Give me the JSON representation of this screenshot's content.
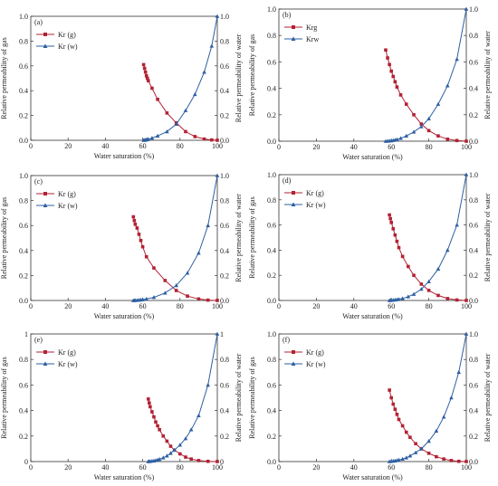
{
  "chart_data": [
    {
      "type": "line",
      "panel": "(a)",
      "xlabel": "Water saturation (%)",
      "ylabel_left": "Relative permeability of gas",
      "ylabel_right": "Relative permeability of water",
      "xlim": [
        0,
        100
      ],
      "ylim_left": [
        0,
        1
      ],
      "ylim_right": [
        0,
        1
      ],
      "x_ticks": [
        "0",
        "20",
        "40",
        "60",
        "80",
        "100"
      ],
      "y_ticks_left": [
        "0.0",
        "0.2",
        "0.4",
        "0.6",
        "0.8",
        "1.0"
      ],
      "y_ticks_right": [
        "0.0",
        "0.2",
        "0.4",
        "0.6",
        "0.8",
        "1.0"
      ],
      "legend_position": "top-left",
      "series": [
        {
          "name": "Kr (g)",
          "marker": "square",
          "color": "#b22234",
          "axis": "left",
          "x": [
            60.5,
            61,
            61.5,
            62,
            62.5,
            63,
            65,
            68,
            73,
            78,
            83,
            88,
            93,
            97,
            100
          ],
          "y": [
            0.61,
            0.58,
            0.55,
            0.52,
            0.5,
            0.48,
            0.42,
            0.33,
            0.22,
            0.14,
            0.07,
            0.03,
            0.01,
            0.003,
            0
          ]
        },
        {
          "name": "Kr (w)",
          "marker": "triangle",
          "color": "#2e5fa3",
          "axis": "right",
          "x": [
            60.5,
            61,
            61.5,
            62,
            62.5,
            63,
            65,
            68,
            73,
            78,
            83,
            88,
            93,
            97,
            100
          ],
          "y": [
            0,
            0.001,
            0.002,
            0.004,
            0.006,
            0.009,
            0.018,
            0.035,
            0.07,
            0.13,
            0.24,
            0.37,
            0.55,
            0.76,
            1.0
          ]
        }
      ]
    },
    {
      "type": "line",
      "panel": "(b)",
      "xlabel": "Water saturation (%)",
      "ylabel_left": "Relative permeability of gas",
      "ylabel_right": "Relative permeability of water",
      "xlim": [
        0,
        100
      ],
      "ylim_left": [
        0,
        1
      ],
      "ylim_right": [
        0,
        1
      ],
      "x_ticks": [
        "0",
        "20",
        "40",
        "60",
        "80",
        "100"
      ],
      "y_ticks_left": [
        "0.0",
        "0.2",
        "0.4",
        "0.6",
        "0.8",
        "1.0"
      ],
      "y_ticks_right": [
        "0.0",
        "0.2",
        "0.4",
        "0.6",
        "0.8",
        "1.0"
      ],
      "legend_position": "top-left",
      "series": [
        {
          "name": "Krg",
          "marker": "square",
          "color": "#b22234",
          "axis": "left",
          "x": [
            57,
            58,
            59,
            60,
            61,
            62,
            63,
            65,
            68,
            72,
            76,
            80,
            85,
            90,
            95,
            100
          ],
          "y": [
            0.69,
            0.63,
            0.58,
            0.53,
            0.49,
            0.45,
            0.41,
            0.35,
            0.28,
            0.2,
            0.13,
            0.08,
            0.04,
            0.015,
            0.005,
            0
          ]
        },
        {
          "name": "Krw",
          "marker": "triangle",
          "color": "#2e5fa3",
          "axis": "right",
          "x": [
            57,
            58,
            59,
            60,
            61,
            62,
            63,
            65,
            68,
            72,
            76,
            80,
            85,
            90,
            95,
            100
          ],
          "y": [
            0,
            0.001,
            0.002,
            0.004,
            0.006,
            0.009,
            0.013,
            0.022,
            0.04,
            0.07,
            0.11,
            0.17,
            0.28,
            0.42,
            0.62,
            1.0
          ]
        }
      ]
    },
    {
      "type": "line",
      "panel": "(c)",
      "xlabel": "Water saturation (%)",
      "ylabel_left": "Relative permeability of gas",
      "ylabel_right": "Relative permeability of water",
      "xlim": [
        0,
        100
      ],
      "ylim_left": [
        0,
        1
      ],
      "ylim_right": [
        0,
        1
      ],
      "x_ticks": [
        "0",
        "20",
        "40",
        "60",
        "80",
        "100"
      ],
      "y_ticks_left": [
        "0.0",
        "0.2",
        "0.4",
        "0.6",
        "0.8",
        "1.0"
      ],
      "y_ticks_right": [
        "0.0",
        "0.2",
        "0.4",
        "0.6",
        "0.8",
        "1.0"
      ],
      "legend_position": "top-left",
      "series": [
        {
          "name": "Kr (g)",
          "marker": "square",
          "color": "#b22234",
          "axis": "left",
          "x": [
            55,
            55.5,
            56,
            57,
            58,
            59,
            60,
            62,
            66,
            72,
            78,
            84,
            90,
            95,
            100
          ],
          "y": [
            0.67,
            0.64,
            0.61,
            0.58,
            0.53,
            0.48,
            0.43,
            0.35,
            0.26,
            0.16,
            0.08,
            0.035,
            0.012,
            0.003,
            0
          ]
        },
        {
          "name": "Kr (w)",
          "marker": "triangle",
          "color": "#2e5fa3",
          "axis": "right",
          "x": [
            55,
            55.5,
            56,
            57,
            58,
            59,
            60,
            62,
            66,
            72,
            78,
            84,
            90,
            95,
            100
          ],
          "y": [
            0,
            0,
            0.001,
            0.002,
            0.003,
            0.005,
            0.007,
            0.012,
            0.025,
            0.06,
            0.12,
            0.22,
            0.38,
            0.6,
            1.0
          ]
        }
      ]
    },
    {
      "type": "line",
      "panel": "(d)",
      "xlabel": "Water saturation (%)",
      "ylabel_left": "Relative permeability of gas",
      "ylabel_right": "Relative permeability of water",
      "xlim": [
        0,
        100
      ],
      "ylim_left": [
        0,
        1
      ],
      "ylim_right": [
        0,
        1
      ],
      "x_ticks": [
        "0",
        "20",
        "40",
        "60",
        "80",
        "100"
      ],
      "y_ticks_left": [
        "0.0",
        "0.2",
        "0.4",
        "0.6",
        "0.8",
        "1.0"
      ],
      "y_ticks_right": [
        "0.0",
        "0.2",
        "0.4",
        "0.6",
        "0.8",
        "1.0"
      ],
      "legend_position": "top-left",
      "series": [
        {
          "name": "Kr (g)",
          "marker": "square",
          "color": "#b22234",
          "axis": "left",
          "x": [
            59,
            59.5,
            60,
            61,
            62,
            63,
            64,
            66,
            69,
            72,
            76,
            80,
            85,
            90,
            95,
            100
          ],
          "y": [
            0.68,
            0.65,
            0.62,
            0.57,
            0.52,
            0.47,
            0.42,
            0.35,
            0.27,
            0.2,
            0.13,
            0.08,
            0.04,
            0.015,
            0.004,
            0
          ]
        },
        {
          "name": "Kr (w)",
          "marker": "triangle",
          "color": "#2e5fa3",
          "axis": "right",
          "x": [
            59,
            59.5,
            60,
            61,
            62,
            63,
            64,
            66,
            69,
            72,
            76,
            80,
            85,
            90,
            95,
            100
          ],
          "y": [
            0,
            0.001,
            0.002,
            0.003,
            0.005,
            0.007,
            0.01,
            0.016,
            0.03,
            0.05,
            0.09,
            0.15,
            0.25,
            0.4,
            0.6,
            1.0
          ]
        }
      ]
    },
    {
      "type": "line",
      "panel": "(e)",
      "xlabel": "Water saturation (%)",
      "ylabel_left": "Relative permeability of gas",
      "ylabel_right": "Relative permeability of water",
      "xlim": [
        0,
        100
      ],
      "ylim_left": [
        0,
        1
      ],
      "ylim_right": [
        0,
        1
      ],
      "x_ticks": [
        "0",
        "20",
        "40",
        "60",
        "80",
        "100"
      ],
      "y_ticks_left": [
        "0",
        "0.2",
        "0.4",
        "0.6",
        "0.8",
        "1"
      ],
      "y_ticks_right": [
        "0",
        "0.2",
        "0.4",
        "0.6",
        "0.8",
        "1"
      ],
      "legend_position": "top-left",
      "series": [
        {
          "name": "Kr (g)",
          "marker": "square",
          "color": "#b22234",
          "axis": "left",
          "x": [
            63,
            63.5,
            64,
            65,
            66,
            67,
            68,
            69,
            71,
            73,
            75,
            77,
            80,
            83,
            86,
            90,
            95,
            100
          ],
          "y": [
            0.49,
            0.46,
            0.43,
            0.39,
            0.35,
            0.31,
            0.28,
            0.25,
            0.2,
            0.16,
            0.12,
            0.09,
            0.06,
            0.035,
            0.02,
            0.008,
            0.002,
            0
          ]
        },
        {
          "name": "Kr (w)",
          "marker": "triangle",
          "color": "#2e5fa3",
          "axis": "right",
          "x": [
            63,
            63.5,
            64,
            65,
            66,
            67,
            68,
            69,
            71,
            73,
            75,
            77,
            80,
            83,
            86,
            90,
            95,
            100
          ],
          "y": [
            0,
            0.001,
            0.002,
            0.004,
            0.006,
            0.009,
            0.013,
            0.018,
            0.03,
            0.045,
            0.065,
            0.09,
            0.13,
            0.18,
            0.25,
            0.36,
            0.6,
            1.0
          ]
        }
      ]
    },
    {
      "type": "line",
      "panel": "(f)",
      "xlabel": "Water saturation (%)",
      "ylabel_left": "Relative permeability of gas",
      "ylabel_right": "Relative permeability of water",
      "xlim": [
        0,
        100
      ],
      "ylim_left": [
        0,
        1
      ],
      "ylim_right": [
        0,
        1
      ],
      "x_ticks": [
        "0",
        "20",
        "40",
        "60",
        "80",
        "100"
      ],
      "y_ticks_left": [
        "0.0",
        "0.2",
        "0.4",
        "0.6",
        "0.8",
        "1.0"
      ],
      "y_ticks_right": [
        "0.0",
        "0.2",
        "0.4",
        "0.6",
        "0.8",
        "1.0"
      ],
      "legend_position": "top-left",
      "series": [
        {
          "name": "Kr (g)",
          "marker": "square",
          "color": "#b22234",
          "axis": "left",
          "x": [
            59,
            60,
            61,
            62,
            63,
            64,
            66,
            68,
            70,
            73,
            76,
            80,
            84,
            88,
            92,
            96,
            100
          ],
          "y": [
            0.56,
            0.5,
            0.45,
            0.41,
            0.37,
            0.33,
            0.28,
            0.23,
            0.19,
            0.14,
            0.1,
            0.065,
            0.038,
            0.02,
            0.008,
            0.002,
            0
          ]
        },
        {
          "name": "Kr (w)",
          "marker": "triangle",
          "color": "#2e5fa3",
          "axis": "right",
          "x": [
            59,
            60,
            61,
            62,
            63,
            64,
            66,
            68,
            70,
            73,
            76,
            80,
            84,
            88,
            92,
            96,
            100
          ],
          "y": [
            0,
            0.002,
            0.004,
            0.006,
            0.009,
            0.013,
            0.02,
            0.03,
            0.045,
            0.07,
            0.1,
            0.16,
            0.24,
            0.35,
            0.5,
            0.7,
            1.0
          ]
        }
      ]
    }
  ]
}
